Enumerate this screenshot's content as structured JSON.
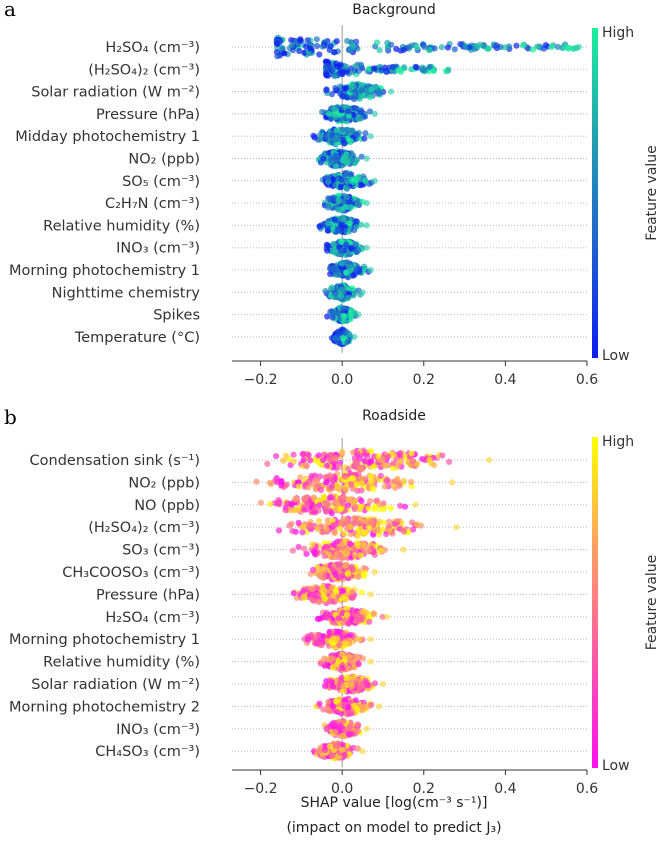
{
  "figure": {
    "xlabel_line1": "SHAP value [log(cm⁻³ s⁻¹)]",
    "xlabel_line2": "(impact on model to predict J₃)"
  },
  "chart_data": [
    {
      "type": "scatter",
      "subtype": "shap-beeswarm",
      "panel_letter": "a",
      "title": "Background",
      "xlim": [
        -0.27,
        0.6
      ],
      "xticks": [
        -0.2,
        0.0,
        0.2,
        0.4,
        0.6
      ],
      "xtick_labels": [
        "−0.2",
        "0.0",
        "0.2",
        "0.4",
        "0.6"
      ],
      "colorbar": {
        "label": "Feature value",
        "high": "High",
        "low": "Low",
        "colors": [
          "#0d1cf5",
          "#1f5fd0",
          "#22a0b0",
          "#1cf0a0"
        ]
      },
      "features": [
        {
          "name": "H₂SO₄ (cm⁻³)",
          "min": -0.16,
          "max": 0.58,
          "spread": 1.0,
          "skew": "right"
        },
        {
          "name": "(H₂SO₄)₂ (cm⁻³)",
          "min": -0.04,
          "max": 0.26,
          "spread": 0.45,
          "skew": "right"
        },
        {
          "name": "Solar radiation (W m⁻²)",
          "min": -0.05,
          "max": 0.12,
          "spread": 0.55,
          "skew": "none"
        },
        {
          "name": "Pressure (hPa)",
          "min": -0.07,
          "max": 0.08,
          "spread": 0.6,
          "skew": "none"
        },
        {
          "name": "Midday photochemistry 1",
          "min": -0.09,
          "max": 0.07,
          "spread": 0.65,
          "skew": "none"
        },
        {
          "name": "NO₂ (ppb)",
          "min": -0.08,
          "max": 0.06,
          "spread": 0.6,
          "skew": "none"
        },
        {
          "name": "SO₅ (cm⁻³)",
          "min": -0.06,
          "max": 0.08,
          "spread": 0.55,
          "skew": "none"
        },
        {
          "name": "C₂H₇N (cm⁻³)",
          "min": -0.06,
          "max": 0.06,
          "spread": 0.55,
          "skew": "none"
        },
        {
          "name": "Relative humidity (%)",
          "min": -0.07,
          "max": 0.06,
          "spread": 0.6,
          "skew": "none"
        },
        {
          "name": "INO₃ (cm⁻³)",
          "min": -0.05,
          "max": 0.06,
          "spread": 0.5,
          "skew": "none"
        },
        {
          "name": "Morning photochemistry 1",
          "min": -0.05,
          "max": 0.07,
          "spread": 0.5,
          "skew": "none"
        },
        {
          "name": "Nighttime chemistry",
          "min": -0.05,
          "max": 0.05,
          "spread": 0.45,
          "skew": "none"
        },
        {
          "name": "Spikes",
          "min": -0.04,
          "max": 0.04,
          "spread": 0.4,
          "skew": "none"
        },
        {
          "name": "Temperature (°C)",
          "min": -0.03,
          "max": 0.03,
          "spread": 0.4,
          "skew": "none"
        }
      ]
    },
    {
      "type": "scatter",
      "subtype": "shap-beeswarm",
      "panel_letter": "b",
      "title": "Roadside",
      "xlim": [
        -0.27,
        0.6
      ],
      "xticks": [
        -0.2,
        0.0,
        0.2,
        0.4,
        0.6
      ],
      "xtick_labels": [
        "−0.2",
        "0.0",
        "0.2",
        "0.4",
        "0.6"
      ],
      "colorbar": {
        "label": "Feature value",
        "high": "High",
        "low": "Low",
        "colors": [
          "#ff10f0",
          "#ff5aa8",
          "#ffa060",
          "#ffff00"
        ]
      },
      "features": [
        {
          "name": "Condensation sink (s⁻¹)",
          "min": -0.26,
          "max": 0.36,
          "spread": 1.0,
          "skew": "none"
        },
        {
          "name": "NO₂ (ppb)",
          "min": -0.26,
          "max": 0.27,
          "spread": 0.85,
          "skew": "none"
        },
        {
          "name": "NO (ppb)",
          "min": -0.25,
          "max": 0.18,
          "spread": 0.85,
          "skew": "none"
        },
        {
          "name": "(H₂SO₄)₂ (cm⁻³)",
          "min": -0.2,
          "max": 0.28,
          "spread": 0.85,
          "skew": "none"
        },
        {
          "name": "SO₃ (cm⁻³)",
          "min": -0.14,
          "max": 0.15,
          "spread": 0.75,
          "skew": "none"
        },
        {
          "name": "CH₃COOSO₃ (cm⁻³)",
          "min": -0.1,
          "max": 0.08,
          "spread": 0.7,
          "skew": "none"
        },
        {
          "name": "Pressure (hPa)",
          "min": -0.15,
          "max": 0.07,
          "spread": 0.7,
          "skew": "none"
        },
        {
          "name": "H₂SO₄ (cm⁻³)",
          "min": -0.08,
          "max": 0.11,
          "spread": 0.65,
          "skew": "none"
        },
        {
          "name": "Morning photochemistry 1",
          "min": -0.11,
          "max": 0.07,
          "spread": 0.65,
          "skew": "none"
        },
        {
          "name": "Relative humidity (%)",
          "min": -0.07,
          "max": 0.07,
          "spread": 0.65,
          "skew": "none"
        },
        {
          "name": "Solar radiation (W m⁻²)",
          "min": -0.06,
          "max": 0.1,
          "spread": 0.6,
          "skew": "none"
        },
        {
          "name": "Morning photochemistry 2",
          "min": -0.07,
          "max": 0.09,
          "spread": 0.6,
          "skew": "none"
        },
        {
          "name": "INO₃ (cm⁻³)",
          "min": -0.06,
          "max": 0.06,
          "spread": 0.55,
          "skew": "none"
        },
        {
          "name": "CH₄SO₃ (cm⁻³)",
          "min": -0.08,
          "max": 0.05,
          "spread": 0.55,
          "skew": "none"
        }
      ]
    }
  ]
}
